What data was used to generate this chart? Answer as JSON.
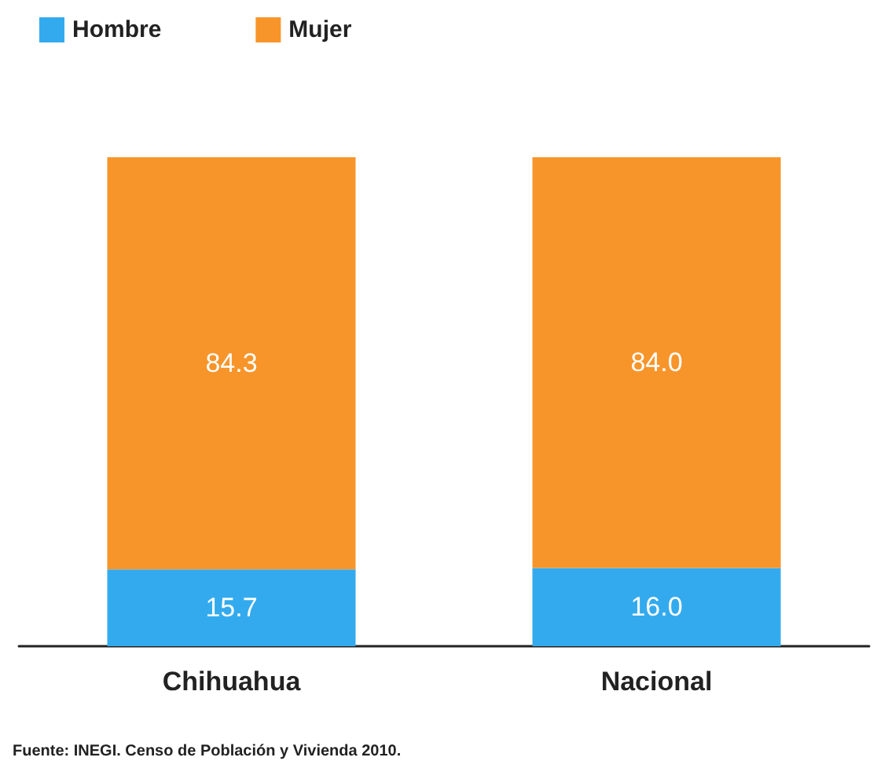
{
  "chart_data": {
    "type": "bar",
    "stacked": true,
    "categories": [
      "Chihuahua",
      "Nacional"
    ],
    "series": [
      {
        "name": "Hombre",
        "color": "#33aaee",
        "values": [
          15.7,
          16.0
        ],
        "value_labels": [
          "15.7",
          "16.0"
        ]
      },
      {
        "name": "Mujer",
        "color": "#f7952a",
        "values": [
          84.3,
          84.0
        ],
        "value_labels": [
          "84.3",
          "84.0"
        ]
      }
    ],
    "legend": "top left",
    "grid": false,
    "annotations": [
      "Fuente: INEGI. Censo de Población y Vivienda 2010."
    ]
  }
}
